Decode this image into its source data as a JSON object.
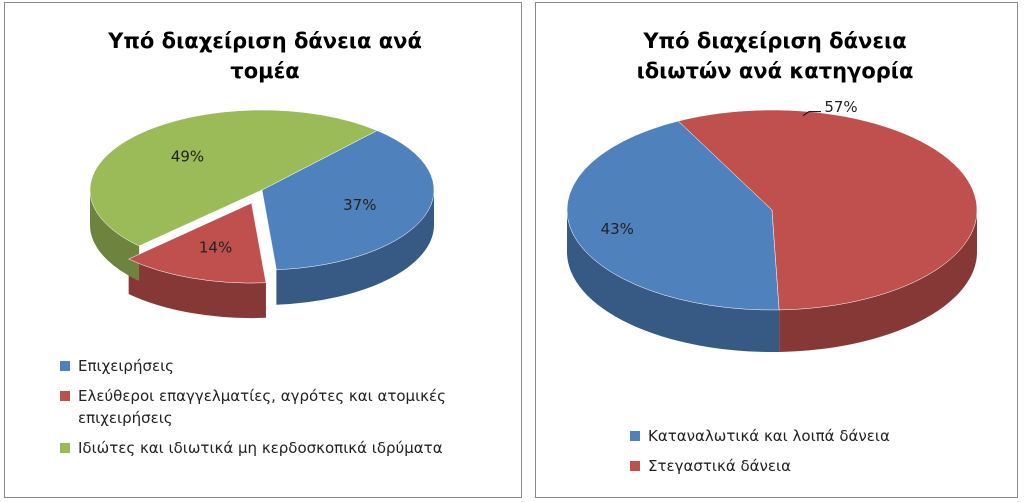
{
  "chart_data": [
    {
      "type": "pie",
      "title": "Υπό διαχείριση δάνεια ανά τομέα",
      "categories": [
        "Επιχειρήσεις",
        "Ελεύθεροι επαγγελματίες, αγρότες και ατομικές επιχειρήσεις",
        "Ιδιώτες και ιδιωτικά μη κερδοσκοπικά ιδρύματα"
      ],
      "values": [
        37,
        14,
        49
      ],
      "value_labels": [
        "37%",
        "14%",
        "49%"
      ],
      "colors": [
        "#4f81bd",
        "#c0504d",
        "#9bbb59"
      ]
    },
    {
      "type": "pie",
      "title": "Υπό διαχείριση δάνεια ιδιωτών ανά κατηγορία",
      "categories": [
        "Καταναλωτικά και λοιπά δάνεια",
        "Στεγαστικά δάνεια"
      ],
      "values": [
        43,
        57
      ],
      "value_labels": [
        "43%",
        "57%"
      ],
      "colors": [
        "#4f81bd",
        "#c0504d"
      ]
    }
  ]
}
